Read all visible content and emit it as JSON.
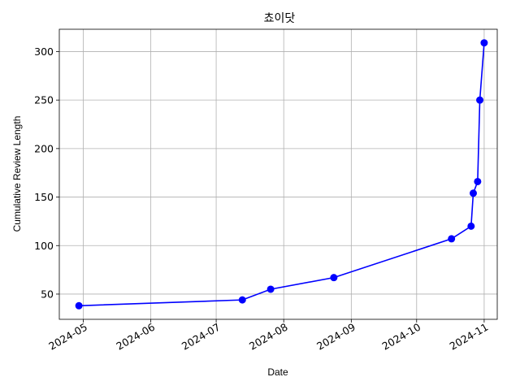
{
  "chart_data": {
    "type": "line",
    "title": "쵸이닷",
    "xlabel": "Date",
    "ylabel": "Cumulative Review Length",
    "x_ticks": [
      "2024-05",
      "2024-06",
      "2024-07",
      "2024-08",
      "2024-09",
      "2024-10",
      "2024-11"
    ],
    "y_ticks": [
      50,
      100,
      150,
      200,
      250,
      300
    ],
    "xlim": [
      "2024-04-20",
      "2024-11-07"
    ],
    "ylim": [
      24,
      323
    ],
    "grid": true,
    "colors": {
      "series": "#0000ff",
      "grid": "#b0b0b0",
      "axes": "#000000"
    },
    "series": [
      {
        "marker": "circle",
        "x": [
          "2024-04-29",
          "2024-07-13",
          "2024-07-26",
          "2024-08-24",
          "2024-10-17",
          "2024-10-26",
          "2024-10-27",
          "2024-10-29",
          "2024-10-30",
          "2024-11-01"
        ],
        "y": [
          38,
          44,
          55,
          67,
          107,
          120,
          154,
          166,
          250,
          309
        ]
      }
    ]
  }
}
